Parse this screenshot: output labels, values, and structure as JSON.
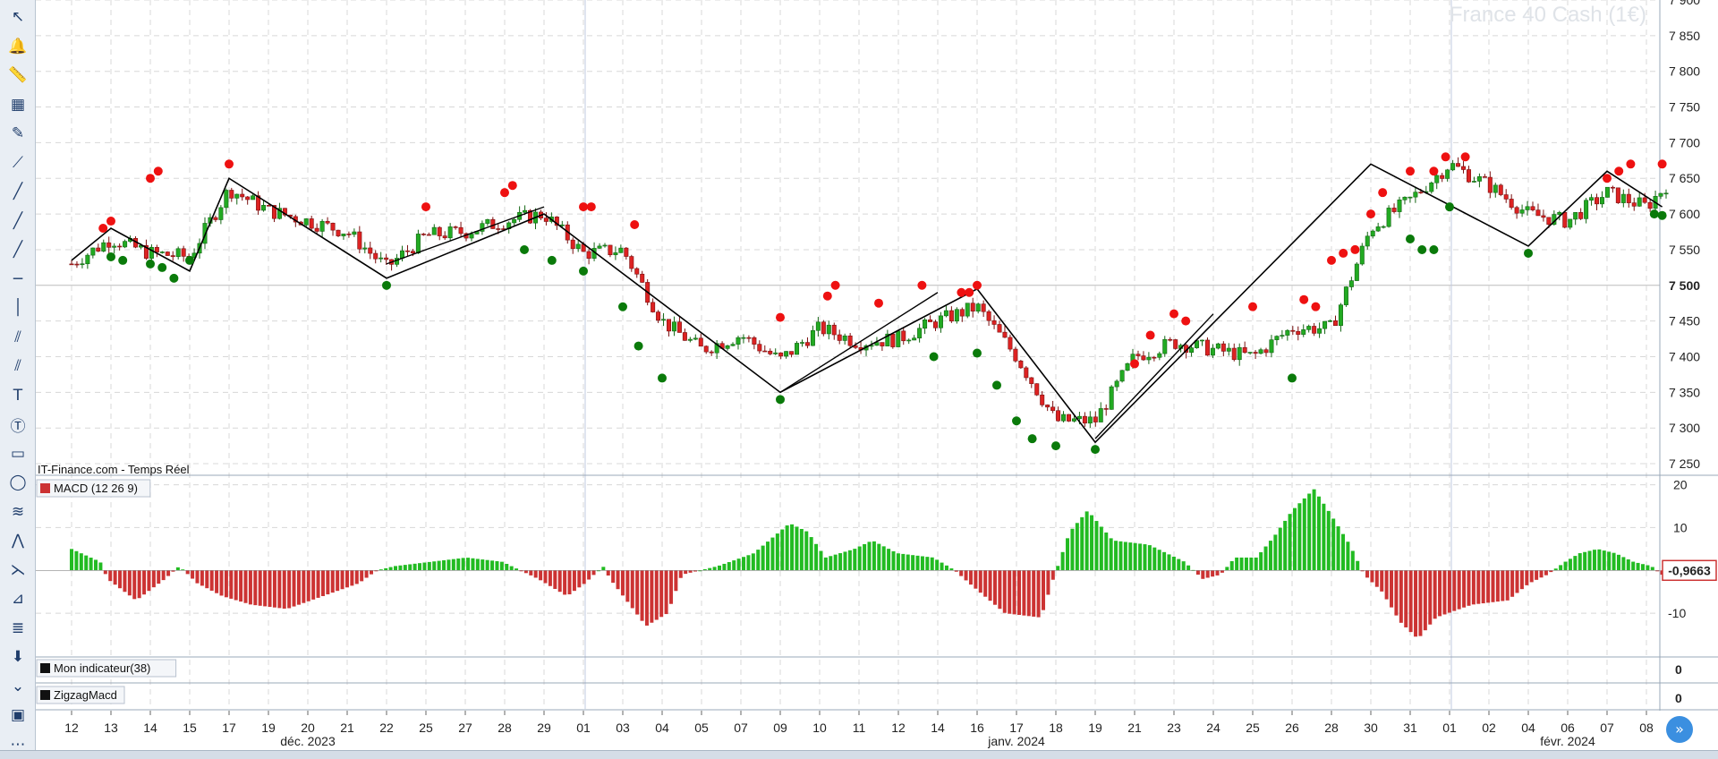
{
  "watermark": "France 40 Cash (1€)",
  "source_label": "IT-Finance.com - Temps Réel",
  "panels": {
    "macd_label": "MACD (12 26 9)",
    "indicator1_label": "Mon indicateur(38)",
    "indicator2_label": "ZigzagMacd",
    "indicator1_value": "0",
    "indicator2_value": "0",
    "macd_last_value": "-0,9663"
  },
  "tools": [
    "cursor-icon",
    "alert-bell-icon",
    "ruler-icon",
    "color-fill-icon",
    "pencil-icon",
    "segment-icon",
    "line-icon",
    "thick-line-icon",
    "bold-line-icon",
    "horizontal-line-icon",
    "vertical-line-icon",
    "trend-channel-icon",
    "fan-icon",
    "text-box-icon",
    "text-circle-icon",
    "rectangle-icon",
    "ellipse-icon",
    "fibonacci-icon",
    "zigzag-icon",
    "gann-icon",
    "pitchfork-icon",
    "layers-icon",
    "download-icon",
    "collapse-icon",
    "screenshot-icon",
    "more-icon"
  ],
  "colors": {
    "up": "#22aa22",
    "down": "#dd2222",
    "macd_pos": "#22bb22",
    "macd_neg": "#cc3333",
    "zigzag": "#000000",
    "grid": "#d8d8d8",
    "top_dot": "#ee1111",
    "bottom_dot": "#0a7a0a"
  },
  "chart_data": {
    "type": "candlestick",
    "title": "France 40 Cash (1€)",
    "y_axis": {
      "ylim": [
        7235,
        7900
      ],
      "ticks": [
        7250,
        7300,
        7350,
        7400,
        7450,
        7500,
        7550,
        7600,
        7650,
        7700,
        7750,
        7800,
        7850,
        7900
      ],
      "highlight": 7500
    },
    "x_ticks": [
      "12",
      "13",
      "14",
      "15",
      "17",
      "19",
      "20",
      "21",
      "22",
      "25",
      "27",
      "28",
      "29",
      "01",
      "03",
      "04",
      "05",
      "07",
      "09",
      "10",
      "11",
      "12",
      "14",
      "16",
      "17",
      "18",
      "19",
      "21",
      "23",
      "24",
      "25",
      "26",
      "28",
      "30",
      "31",
      "01",
      "02",
      "04",
      "06",
      "07",
      "08"
    ],
    "x_month_labels": [
      {
        "label": "déc. 2023",
        "at_tick": 6
      },
      {
        "label": "janv. 2024",
        "at_tick": 24
      },
      {
        "label": "févr. 2024",
        "at_tick": 38
      }
    ],
    "zigzag_points": [
      [
        0,
        7535
      ],
      [
        1,
        7580
      ],
      [
        3,
        7520
      ],
      [
        4,
        7650
      ],
      [
        8,
        7510
      ],
      [
        12,
        7600
      ],
      [
        18,
        7350
      ],
      [
        23,
        7495
      ],
      [
        26,
        7280
      ],
      [
        33,
        7670
      ],
      [
        37,
        7555
      ],
      [
        39,
        7660
      ],
      [
        40.4,
        7610
      ]
    ],
    "zigzag_extra_lines": [
      [
        [
          8,
          7530
        ],
        [
          12,
          7610
        ]
      ],
      [
        [
          18,
          7350
        ],
        [
          22,
          7490
        ]
      ],
      [
        [
          26,
          7285
        ],
        [
          29,
          7460
        ]
      ]
    ],
    "top_markers": [
      [
        0.8,
        7570
      ],
      [
        1.0,
        7580
      ],
      [
        2.0,
        7640
      ],
      [
        2.2,
        7650
      ],
      [
        4.0,
        7660
      ],
      [
        9.0,
        7600
      ],
      [
        11.0,
        7620
      ],
      [
        11.2,
        7630
      ],
      [
        13.0,
        7600
      ],
      [
        13.2,
        7600
      ],
      [
        14.3,
        7575
      ],
      [
        18.0,
        7445
      ],
      [
        19.2,
        7475
      ],
      [
        19.4,
        7490
      ],
      [
        20.5,
        7465
      ],
      [
        21.6,
        7490
      ],
      [
        22.6,
        7480
      ],
      [
        22.8,
        7480
      ],
      [
        23.0,
        7490
      ],
      [
        27.0,
        7380
      ],
      [
        27.4,
        7420
      ],
      [
        28.0,
        7450
      ],
      [
        28.3,
        7440
      ],
      [
        30.0,
        7460
      ],
      [
        31.3,
        7470
      ],
      [
        31.6,
        7460
      ],
      [
        32.0,
        7525
      ],
      [
        32.3,
        7535
      ],
      [
        32.6,
        7540
      ],
      [
        33.0,
        7590
      ],
      [
        33.3,
        7620
      ],
      [
        34.0,
        7650
      ],
      [
        34.6,
        7650
      ],
      [
        34.9,
        7670
      ],
      [
        35.4,
        7670
      ],
      [
        39.0,
        7640
      ],
      [
        39.3,
        7650
      ],
      [
        39.6,
        7660
      ],
      [
        40.4,
        7660
      ]
    ],
    "bottom_markers": [
      [
        1.0,
        7550
      ],
      [
        1.3,
        7545
      ],
      [
        2.0,
        7540
      ],
      [
        2.3,
        7535
      ],
      [
        2.6,
        7520
      ],
      [
        3.0,
        7545
      ],
      [
        8.0,
        7510
      ],
      [
        11.5,
        7560
      ],
      [
        12.2,
        7545
      ],
      [
        13.0,
        7530
      ],
      [
        14.0,
        7480
      ],
      [
        14.4,
        7425
      ],
      [
        15.0,
        7380
      ],
      [
        18.0,
        7350
      ],
      [
        21.9,
        7410
      ],
      [
        23.0,
        7415
      ],
      [
        23.5,
        7370
      ],
      [
        24.0,
        7320
      ],
      [
        24.4,
        7295
      ],
      [
        25.0,
        7285
      ],
      [
        26.0,
        7280
      ],
      [
        31.0,
        7380
      ],
      [
        34.0,
        7575
      ],
      [
        34.3,
        7560
      ],
      [
        34.6,
        7560
      ],
      [
        35.0,
        7620
      ],
      [
        37.0,
        7555
      ],
      [
        40.2,
        7610
      ],
      [
        40.4,
        7608
      ]
    ],
    "candle_trend": [
      [
        0,
        7530
      ],
      [
        1,
        7565
      ],
      [
        2,
        7545
      ],
      [
        3,
        7540
      ],
      [
        4,
        7635
      ],
      [
        5,
        7605
      ],
      [
        6,
        7590
      ],
      [
        7,
        7575
      ],
      [
        8,
        7525
      ],
      [
        9,
        7570
      ],
      [
        10,
        7575
      ],
      [
        11,
        7590
      ],
      [
        12,
        7600
      ],
      [
        13,
        7545
      ],
      [
        14,
        7550
      ],
      [
        15,
        7450
      ],
      [
        16,
        7410
      ],
      [
        17,
        7430
      ],
      [
        18,
        7395
      ],
      [
        19,
        7440
      ],
      [
        20,
        7420
      ],
      [
        21,
        7425
      ],
      [
        22,
        7450
      ],
      [
        23,
        7470
      ],
      [
        24,
        7400
      ],
      [
        25,
        7310
      ],
      [
        26,
        7310
      ],
      [
        27,
        7400
      ],
      [
        28,
        7420
      ],
      [
        29,
        7410
      ],
      [
        30,
        7400
      ],
      [
        31,
        7440
      ],
      [
        32,
        7440
      ],
      [
        33,
        7580
      ],
      [
        34,
        7620
      ],
      [
        35,
        7670
      ],
      [
        36,
        7640
      ],
      [
        37,
        7600
      ],
      [
        38,
        7590
      ],
      [
        39,
        7630
      ],
      [
        40,
        7610
      ],
      [
        40.5,
        7640
      ]
    ],
    "macd_axis": {
      "ylim": [
        -20,
        22
      ],
      "ticks": [
        20,
        10,
        -10
      ]
    },
    "macd_hist_keypoints": [
      [
        0,
        5
      ],
      [
        0.8,
        2
      ],
      [
        1,
        -2
      ],
      [
        1.8,
        -7
      ],
      [
        2.6,
        -2
      ],
      [
        3,
        1
      ],
      [
        3.5,
        -3
      ],
      [
        4.2,
        -6
      ],
      [
        5,
        -8
      ],
      [
        6,
        -9
      ],
      [
        7,
        -6
      ],
      [
        8,
        -3
      ],
      [
        8.5,
        0
      ],
      [
        9,
        1
      ],
      [
        10,
        2
      ],
      [
        11,
        3
      ],
      [
        12,
        2
      ],
      [
        13,
        -2
      ],
      [
        13.8,
        -6
      ],
      [
        14.3,
        -3
      ],
      [
        14.8,
        1
      ],
      [
        15,
        -2
      ],
      [
        16,
        -13
      ],
      [
        16.6,
        -10
      ],
      [
        17,
        -1
      ],
      [
        18,
        1
      ],
      [
        19,
        4
      ],
      [
        20,
        11
      ],
      [
        20.5,
        9
      ],
      [
        21,
        3
      ],
      [
        21.8,
        5
      ],
      [
        22.3,
        7
      ],
      [
        23,
        4
      ],
      [
        24,
        3
      ],
      [
        24.6,
        0
      ],
      [
        25,
        -3
      ],
      [
        26,
        -10
      ],
      [
        27,
        -11
      ],
      [
        27.3,
        -3
      ],
      [
        27.8,
        9
      ],
      [
        28.3,
        14
      ],
      [
        29,
        7
      ],
      [
        30,
        6
      ],
      [
        31,
        2
      ],
      [
        31.5,
        -2
      ],
      [
        32,
        -1
      ],
      [
        32.4,
        3
      ],
      [
        33,
        3
      ],
      [
        33.5,
        8
      ],
      [
        34,
        14
      ],
      [
        34.6,
        19
      ],
      [
        35,
        14
      ],
      [
        35.6,
        6
      ],
      [
        36,
        -1
      ],
      [
        36.5,
        -5
      ],
      [
        37,
        -12
      ],
      [
        37.5,
        -16
      ],
      [
        38,
        -11
      ],
      [
        39,
        -8
      ],
      [
        40,
        -7
      ],
      [
        40.6,
        -3
      ],
      [
        41.1,
        -1
      ]
    ],
    "macd_hist_keypoints2": [
      [
        41.1,
        -1
      ],
      [
        41.6,
        2
      ],
      [
        42,
        4
      ],
      [
        42.5,
        5
      ],
      [
        43,
        4
      ],
      [
        43.5,
        2
      ],
      [
        44,
        1
      ],
      [
        44.3,
        -1
      ]
    ]
  }
}
